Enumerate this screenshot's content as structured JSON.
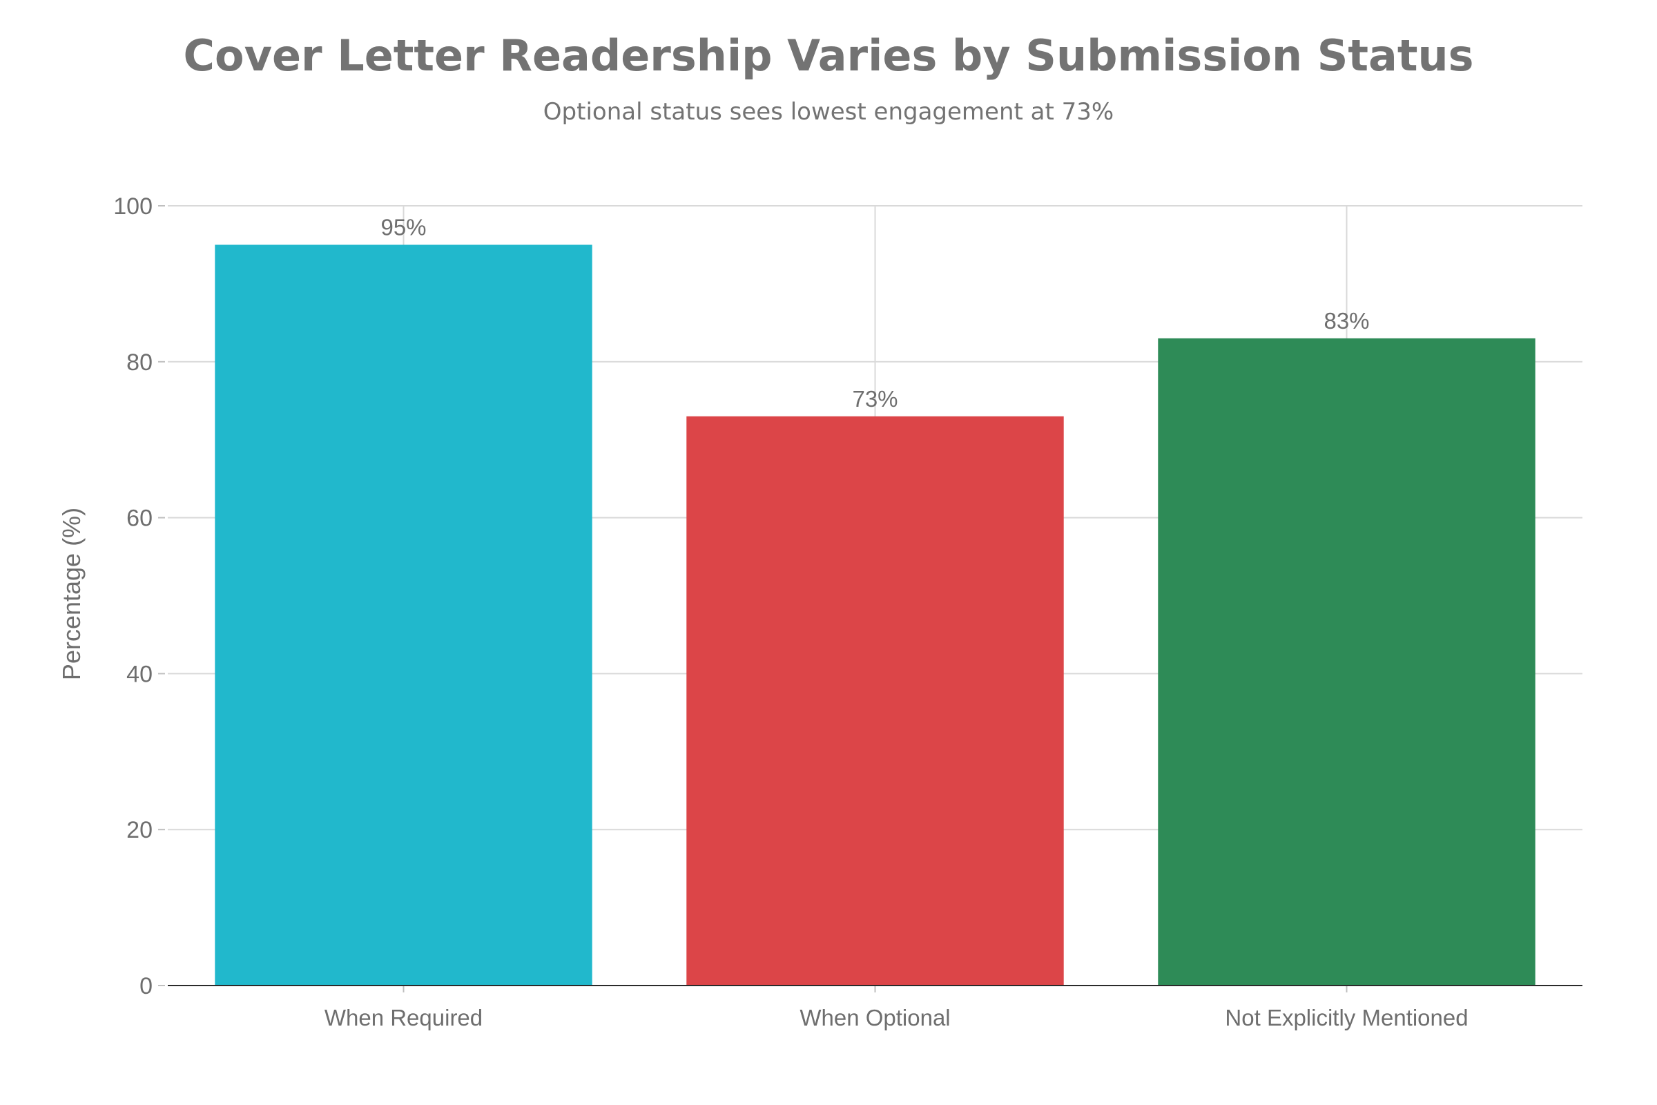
{
  "chart_data": {
    "type": "bar",
    "title": "Cover Letter Readership Varies by Submission Status",
    "subtitle": "Optional status sees lowest engagement at 73%",
    "xlabel": "",
    "ylabel": "Percentage (%)",
    "categories": [
      "When Required",
      "When Optional",
      "Not Explicitly Mentioned"
    ],
    "values": [
      95,
      73,
      83
    ],
    "value_labels": [
      "95%",
      "73%",
      "83%"
    ],
    "colors": [
      "#21B8CC",
      "#DC4548",
      "#2E8B57"
    ],
    "ylim": [
      0,
      100
    ],
    "yticks": [
      0,
      20,
      40,
      60,
      80,
      100
    ],
    "ytick_labels": [
      "0",
      "20",
      "40",
      "60",
      "80",
      "100"
    ],
    "grid": true,
    "legend": "none"
  }
}
